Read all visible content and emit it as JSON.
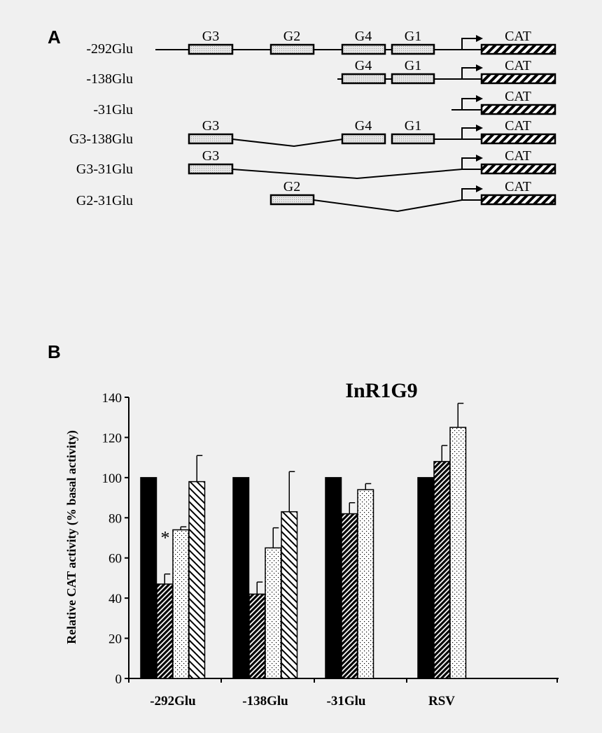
{
  "panelA": {
    "label": "A",
    "constructs": [
      {
        "name": "-292Glu",
        "elements": [
          "G3",
          "G2",
          "G4",
          "G1"
        ],
        "reporter": "CAT"
      },
      {
        "name": "-138Glu",
        "elements": [
          "G4",
          "G1"
        ],
        "reporter": "CAT"
      },
      {
        "name": "-31Glu",
        "elements": [],
        "reporter": "CAT"
      },
      {
        "name": "G3-138Glu",
        "elements": [
          "G3",
          "G4",
          "G1"
        ],
        "reporter": "CAT"
      },
      {
        "name": "G3-31Glu",
        "elements": [
          "G3"
        ],
        "reporter": "CAT"
      },
      {
        "name": "G2-31Glu",
        "elements": [
          "G2"
        ],
        "reporter": "CAT"
      }
    ]
  },
  "panelB": {
    "label": "B"
  },
  "colors": {
    "background": "#f0f0f0",
    "ink": "#000000"
  },
  "chart_data": {
    "type": "bar",
    "title": "InR1G9",
    "ylabel": "Relative CAT activity (% basal activity)",
    "xlabel": "",
    "ylim": [
      0,
      140
    ],
    "yticks": [
      0,
      20,
      40,
      60,
      80,
      100,
      120,
      140
    ],
    "categories": [
      "-292Glu",
      "-138Glu",
      "-31Glu",
      "RSV"
    ],
    "bar_patterns": [
      "solid",
      "dense-hatch",
      "dots",
      "diagonal-hatch"
    ],
    "groups": [
      {
        "category": "-292Glu",
        "bars": [
          {
            "pattern": "solid",
            "value": 100,
            "error": 0,
            "star": false
          },
          {
            "pattern": "dense-hatch",
            "value": 47,
            "error": 5,
            "star": true
          },
          {
            "pattern": "dots",
            "value": 74,
            "error": 1.5,
            "star": true
          },
          {
            "pattern": "diagonal-hatch",
            "value": 98,
            "error": 13,
            "star": false
          }
        ]
      },
      {
        "category": "-138Glu",
        "bars": [
          {
            "pattern": "solid",
            "value": 100,
            "error": 0,
            "star": false
          },
          {
            "pattern": "dense-hatch",
            "value": 42,
            "error": 6,
            "star": true
          },
          {
            "pattern": "dots",
            "value": 65,
            "error": 10,
            "star": false
          },
          {
            "pattern": "diagonal-hatch",
            "value": 83,
            "error": 20,
            "star": false
          }
        ]
      },
      {
        "category": "-31Glu",
        "bars": [
          {
            "pattern": "solid",
            "value": 100,
            "error": 0,
            "star": false
          },
          {
            "pattern": "dense-hatch",
            "value": 82,
            "error": 5.5,
            "star": false
          },
          {
            "pattern": "dots",
            "value": 94,
            "error": 3,
            "star": false
          }
        ]
      },
      {
        "category": "RSV",
        "bars": [
          {
            "pattern": "solid",
            "value": 100,
            "error": 0,
            "star": false
          },
          {
            "pattern": "dense-hatch",
            "value": 108,
            "error": 8,
            "star": false
          },
          {
            "pattern": "dots",
            "value": 125,
            "error": 12,
            "star": false
          }
        ]
      }
    ],
    "star_symbol": "*"
  }
}
